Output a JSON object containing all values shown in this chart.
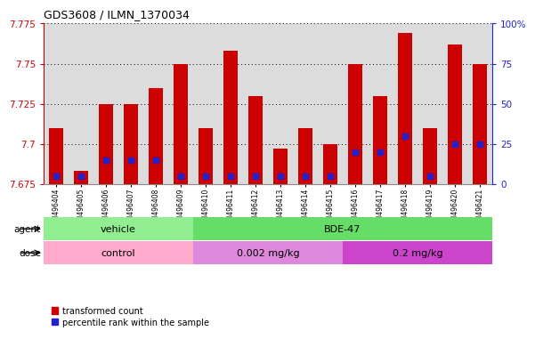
{
  "title": "GDS3608 / ILMN_1370034",
  "samples": [
    "GSM496404",
    "GSM496405",
    "GSM496406",
    "GSM496407",
    "GSM496408",
    "GSM496409",
    "GSM496410",
    "GSM496411",
    "GSM496412",
    "GSM496413",
    "GSM496414",
    "GSM496415",
    "GSM496416",
    "GSM496417",
    "GSM496418",
    "GSM496419",
    "GSM496420",
    "GSM496421"
  ],
  "red_values": [
    7.71,
    7.683,
    7.725,
    7.725,
    7.735,
    7.75,
    7.71,
    7.758,
    7.73,
    7.697,
    7.71,
    7.7,
    7.75,
    7.73,
    7.769,
    7.71,
    7.762,
    7.75
  ],
  "blue_pct": [
    5,
    5,
    15,
    15,
    15,
    5,
    5,
    5,
    5,
    5,
    5,
    5,
    20,
    20,
    30,
    5,
    25,
    25
  ],
  "ymin": 7.675,
  "ymax": 7.775,
  "yticks": [
    7.675,
    7.7,
    7.725,
    7.75,
    7.775
  ],
  "ytick_labels": [
    "7.675",
    "7.7",
    "7.725",
    "7.75",
    "7.775"
  ],
  "right_yticks": [
    0,
    25,
    50,
    75,
    100
  ],
  "right_ytick_labels": [
    "0",
    "25",
    "50",
    "75",
    "100%"
  ],
  "bar_color": "#CC0000",
  "blue_color": "#2222CC",
  "bar_width": 0.55,
  "agent_vehicle_color": "#90EE90",
  "agent_bde47_color": "#66DD66",
  "dose_control_color": "#FFAACC",
  "dose_low_color": "#DD88DD",
  "dose_high_color": "#CC44CC",
  "grid_color": "#000000",
  "bg_color": "#DCDCDC",
  "legend_red": "transformed count",
  "legend_blue": "percentile rank within the sample",
  "left_axis_color": "#CC0000",
  "right_axis_color": "#2222CC"
}
